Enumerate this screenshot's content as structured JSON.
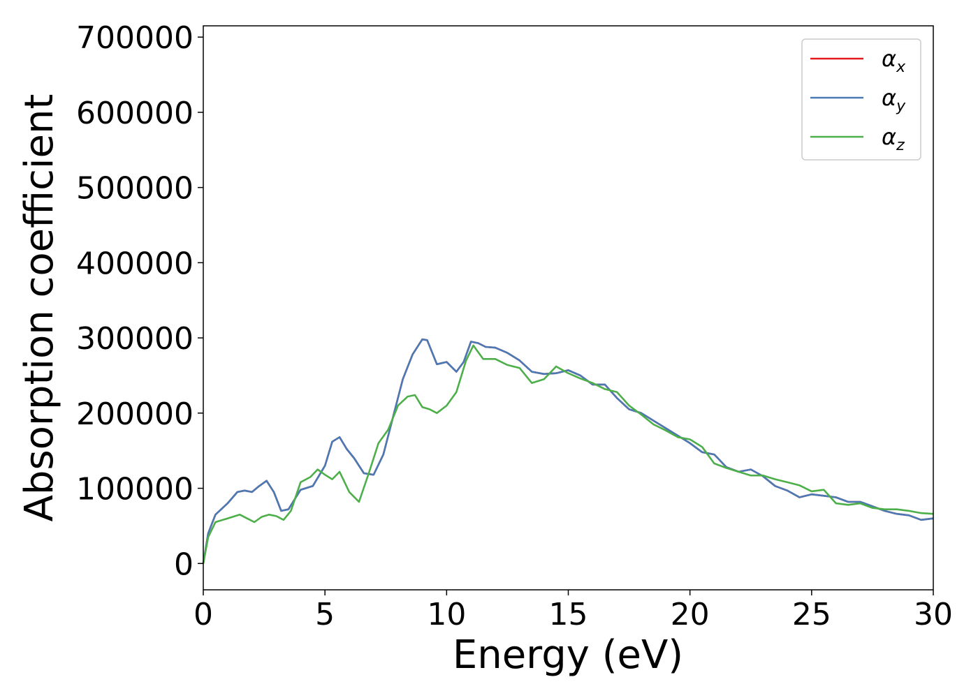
{
  "chart_data": {
    "type": "line",
    "title": "",
    "xlabel": "Energy (eV)",
    "ylabel": "Absorption coefficient",
    "xlim": [
      0,
      30
    ],
    "ylim": [
      -35000,
      715000
    ],
    "xticks": [
      0,
      5,
      10,
      15,
      20,
      25,
      30
    ],
    "yticks": [
      0,
      100000,
      200000,
      300000,
      400000,
      500000,
      600000,
      700000
    ],
    "grid": false,
    "legend_position": "top-right",
    "series": [
      {
        "name": "α",
        "sub": "x",
        "color": "#e41a1c",
        "x": [
          0,
          0.2,
          0.5,
          1.0,
          1.4,
          1.7,
          2.0,
          2.3,
          2.6,
          2.9,
          3.2,
          3.5,
          4.0,
          4.5,
          5.0,
          5.3,
          5.6,
          5.9,
          6.2,
          6.6,
          7.0,
          7.4,
          7.8,
          8.2,
          8.6,
          9.0,
          9.2,
          9.6,
          10.0,
          10.4,
          10.7,
          11.0,
          11.3,
          11.6,
          12.0,
          12.5,
          13.0,
          13.5,
          14.0,
          14.5,
          15.0,
          15.5,
          16.0,
          16.5,
          17.0,
          17.5,
          18.0,
          18.5,
          19.0,
          19.5,
          20.0,
          20.5,
          21.0,
          21.5,
          22.0,
          22.5,
          23.0,
          23.5,
          24.0,
          24.5,
          25.0,
          25.5,
          26.0,
          26.5,
          27.0,
          27.5,
          28.0,
          28.5,
          29.0,
          29.5,
          30.0
        ],
        "values": [
          0,
          40000,
          65000,
          80000,
          95000,
          97000,
          95000,
          103000,
          110000,
          95000,
          70000,
          72000,
          98000,
          103000,
          130000,
          162000,
          168000,
          152000,
          140000,
          120000,
          118000,
          145000,
          195000,
          245000,
          278000,
          298000,
          297000,
          265000,
          268000,
          255000,
          268000,
          295000,
          293000,
          288000,
          287000,
          280000,
          270000,
          255000,
          252000,
          253000,
          257000,
          250000,
          238000,
          238000,
          220000,
          205000,
          200000,
          190000,
          180000,
          170000,
          160000,
          148000,
          145000,
          128000,
          122000,
          125000,
          116000,
          103000,
          97000,
          88000,
          92000,
          90000,
          88000,
          82000,
          82000,
          76000,
          70000,
          66000,
          64000,
          58000,
          60000
        ]
      },
      {
        "name": "α",
        "sub": "y",
        "color": "#4a7ab5",
        "x": [
          0,
          0.2,
          0.5,
          1.0,
          1.4,
          1.7,
          2.0,
          2.3,
          2.6,
          2.9,
          3.2,
          3.5,
          4.0,
          4.5,
          5.0,
          5.3,
          5.6,
          5.9,
          6.2,
          6.6,
          7.0,
          7.4,
          7.8,
          8.2,
          8.6,
          9.0,
          9.2,
          9.6,
          10.0,
          10.4,
          10.7,
          11.0,
          11.3,
          11.6,
          12.0,
          12.5,
          13.0,
          13.5,
          14.0,
          14.5,
          15.0,
          15.5,
          16.0,
          16.5,
          17.0,
          17.5,
          18.0,
          18.5,
          19.0,
          19.5,
          20.0,
          20.5,
          21.0,
          21.5,
          22.0,
          22.5,
          23.0,
          23.5,
          24.0,
          24.5,
          25.0,
          25.5,
          26.0,
          26.5,
          27.0,
          27.5,
          28.0,
          28.5,
          29.0,
          29.5,
          30.0
        ],
        "values": [
          0,
          40000,
          65000,
          80000,
          95000,
          97000,
          95000,
          103000,
          110000,
          95000,
          70000,
          72000,
          98000,
          103000,
          130000,
          162000,
          168000,
          152000,
          140000,
          120000,
          118000,
          145000,
          195000,
          245000,
          278000,
          298000,
          297000,
          265000,
          268000,
          255000,
          268000,
          295000,
          293000,
          288000,
          287000,
          280000,
          270000,
          255000,
          252000,
          253000,
          257000,
          250000,
          238000,
          238000,
          220000,
          205000,
          200000,
          190000,
          180000,
          170000,
          160000,
          148000,
          145000,
          128000,
          122000,
          125000,
          116000,
          103000,
          97000,
          88000,
          92000,
          90000,
          88000,
          82000,
          82000,
          76000,
          70000,
          66000,
          64000,
          58000,
          60000
        ]
      },
      {
        "name": "α",
        "sub": "z",
        "color": "#4daf4a",
        "x": [
          0,
          0.2,
          0.5,
          1.0,
          1.5,
          1.8,
          2.1,
          2.4,
          2.7,
          3.0,
          3.3,
          3.6,
          4.0,
          4.4,
          4.7,
          5.0,
          5.3,
          5.6,
          6.0,
          6.4,
          6.8,
          7.2,
          7.6,
          8.0,
          8.4,
          8.7,
          9.0,
          9.3,
          9.6,
          10.0,
          10.4,
          10.8,
          11.1,
          11.5,
          12.0,
          12.5,
          13.0,
          13.5,
          14.0,
          14.5,
          15.0,
          15.5,
          16.0,
          16.5,
          17.0,
          17.5,
          18.0,
          18.5,
          19.0,
          19.5,
          20.0,
          20.5,
          21.0,
          21.5,
          22.0,
          22.5,
          23.0,
          23.5,
          24.0,
          24.5,
          25.0,
          25.5,
          26.0,
          26.5,
          27.0,
          27.5,
          28.0,
          28.5,
          29.0,
          29.5,
          30.0
        ],
        "values": [
          0,
          35000,
          55000,
          60000,
          65000,
          60000,
          55000,
          62000,
          65000,
          63000,
          58000,
          70000,
          108000,
          115000,
          125000,
          118000,
          112000,
          122000,
          95000,
          82000,
          120000,
          160000,
          178000,
          210000,
          222000,
          224000,
          208000,
          205000,
          200000,
          210000,
          228000,
          270000,
          290000,
          272000,
          272000,
          264000,
          260000,
          240000,
          245000,
          262000,
          253000,
          246000,
          240000,
          232000,
          228000,
          210000,
          198000,
          185000,
          177000,
          168000,
          165000,
          155000,
          133000,
          127000,
          122000,
          117000,
          117000,
          112000,
          108000,
          104000,
          96000,
          98000,
          80000,
          78000,
          80000,
          74000,
          72000,
          72000,
          70000,
          67000,
          66000
        ]
      }
    ]
  }
}
